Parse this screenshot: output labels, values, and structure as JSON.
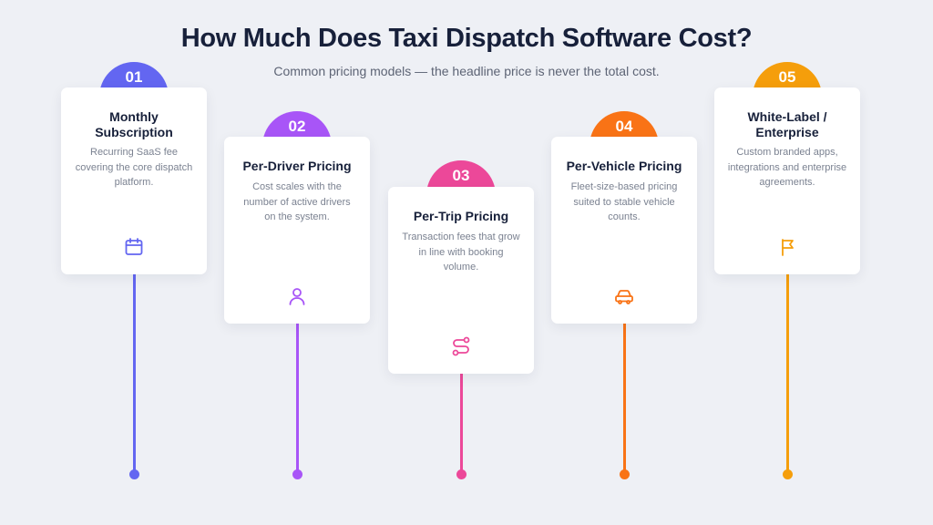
{
  "header": {
    "title": "How Much Does Taxi Dispatch Software Cost?",
    "subtitle": "Common pricing models — the headline price is never the total cost."
  },
  "steps": [
    {
      "number": "01",
      "title": "Monthly Subscription",
      "description": "Recurring SaaS fee covering the core dispatch platform.",
      "color": "#6366f1",
      "icon": "calendar-icon"
    },
    {
      "number": "02",
      "title": "Per-Driver Pricing",
      "description": "Cost scales with the number of active drivers on the system.",
      "color": "#a855f7",
      "icon": "user-icon"
    },
    {
      "number": "03",
      "title": "Per-Trip Pricing",
      "description": "Transaction fees that grow in line with booking volume.",
      "color": "#ec4899",
      "icon": "route-icon"
    },
    {
      "number": "04",
      "title": "Per-Vehicle Pricing",
      "description": "Fleet-size-based pricing suited to stable vehicle counts.",
      "color": "#f97316",
      "icon": "car-icon"
    },
    {
      "number": "05",
      "title": "White-Label / Enterprise",
      "description": "Custom branded apps, integrations and enterprise agreements.",
      "color": "#f59e0b",
      "icon": "flag-icon"
    }
  ]
}
